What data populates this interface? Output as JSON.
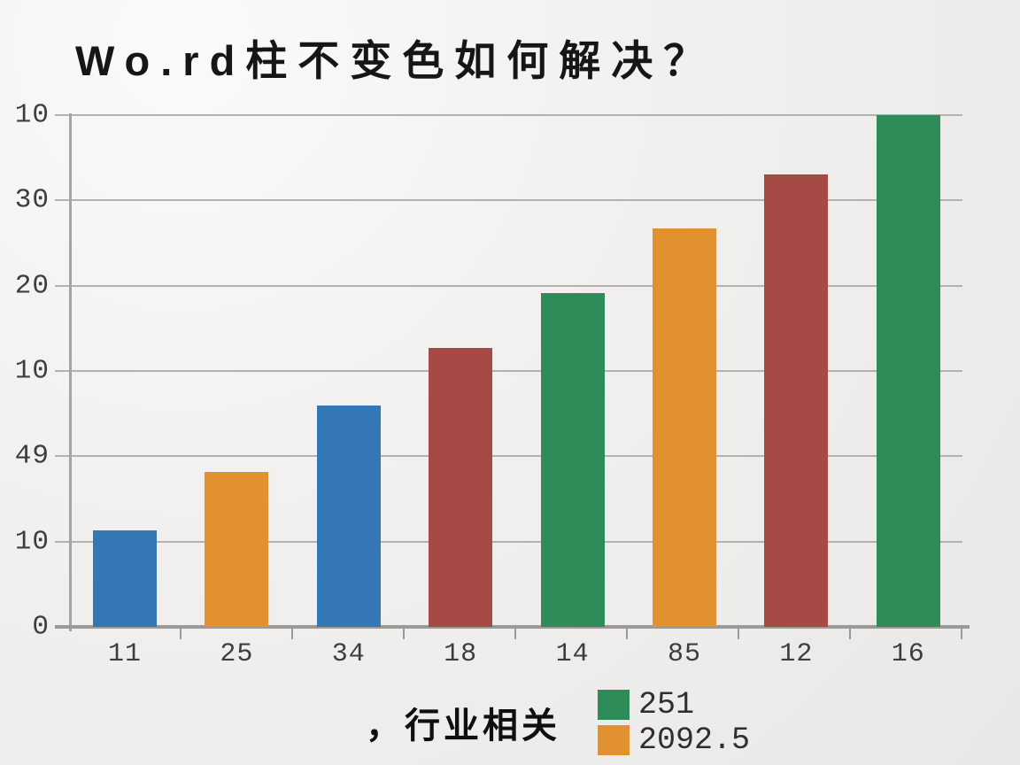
{
  "title": "Wo.rd柱不变色如何解决？",
  "colors": {
    "background": "#f0efed",
    "gridline": "#b3b2b0",
    "axis": "#9b9a98",
    "tick_text": "#3d3d3d",
    "blue": "#3377b4",
    "orange": "#e1912f",
    "dark_red": "#a54a45",
    "green": "#2f8c59"
  },
  "chart_data": {
    "type": "bar",
    "title": "Wo.rd柱不变色如何解决？",
    "categories": [
      "11",
      "25",
      "34",
      "18",
      "14",
      "85",
      "12",
      "16"
    ],
    "values": [
      11.3,
      18.2,
      25.9,
      32.7,
      39.1,
      46.7,
      53.0,
      60.0
    ],
    "bar_colors": [
      "#3377b4",
      "#e1912f",
      "#3377b4",
      "#a54a45",
      "#2f8c59",
      "#e1912f",
      "#a54a45",
      "#2f8c59"
    ],
    "ylim": [
      0,
      60
    ],
    "y_gridline_step": 10,
    "y_tick_labels_bottom_to_top": [
      "0",
      "10",
      "49",
      "10",
      "20",
      "30",
      "10"
    ],
    "grid": true,
    "xlabel": "",
    "ylabel": "",
    "legend": {
      "position": "bottom",
      "prefix": "，行业相关",
      "entries": [
        {
          "label": "251",
          "color": "#2f8c59"
        },
        {
          "label": "2092.5",
          "color": "#e1912f"
        }
      ]
    }
  }
}
